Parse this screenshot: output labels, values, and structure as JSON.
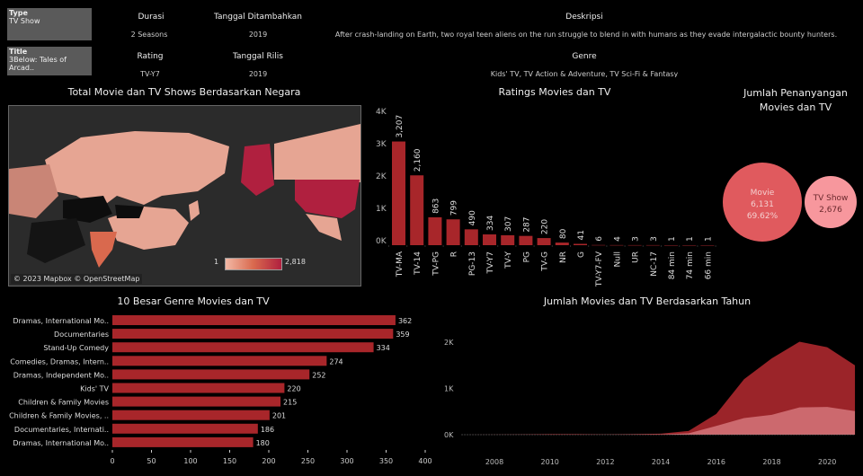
{
  "filters": {
    "type_label": "Type",
    "type_value": "TV Show",
    "title_label": "Title",
    "title_value": "3Below: Tales of Arcad.."
  },
  "details": {
    "durasi_label": "Durasi",
    "durasi_value": "2 Seasons",
    "added_label": "Tanggal Ditambahkan",
    "added_value": "2019",
    "desc_label": "Deskripsi",
    "desc_value": "After crash-landing on Earth, two royal teen aliens on the run struggle to blend in with humans as they evade intergalactic bounty hunters.",
    "rating_label": "Rating",
    "rating_value": "TV-Y7",
    "release_label": "Tanggal Rilis",
    "release_value": "2019",
    "genre_label": "Genre",
    "genre_value": "Kids' TV, TV Action & Adventure, TV Sci-Fi & Fantasy"
  },
  "map": {
    "title": "Total Movie dan TV Shows Berdasarkan Negara",
    "legend_min": "1",
    "legend_max": "2,818",
    "attribution": "© 2023 Mapbox © OpenStreetMap",
    "colors": {
      "low": "#f2b8a5",
      "high": "#b0203f",
      "mid": "#d9694e",
      "none": "#333333"
    }
  },
  "chart_data": [
    {
      "type": "bar",
      "title": "Ratings Movies dan TV",
      "categories": [
        "TV-MA",
        "TV-14",
        "TV-PG",
        "R",
        "PG-13",
        "TV-Y7",
        "TV-Y",
        "PG",
        "TV-G",
        "NR",
        "G",
        "TV-Y7-FV",
        "Null",
        "UR",
        "NC-17",
        "84 min",
        "74 min",
        "66 min"
      ],
      "values": [
        3207,
        2160,
        863,
        799,
        490,
        334,
        307,
        287,
        220,
        80,
        41,
        6,
        4,
        3,
        3,
        1,
        1,
        1
      ],
      "labels": [
        "3,207",
        "2,160",
        "863",
        "799",
        "490",
        "334",
        "307",
        "287",
        "220",
        "80",
        "41",
        "6",
        "4",
        "3",
        "3",
        "1",
        "1",
        "1"
      ],
      "yticks": [
        "0K",
        "1K",
        "2K",
        "3K",
        "4K"
      ],
      "ylim": [
        0,
        4000
      ],
      "color": "#a8262a"
    },
    {
      "type": "bubble",
      "title": "Jumlah Penanyangan Movies dan TV",
      "categories": [
        "Movie",
        "TV Show"
      ],
      "values": [
        6131,
        2676
      ],
      "labels": [
        "6,131",
        "2,676"
      ],
      "percent": "69.62%",
      "colors": [
        "#e05a5e",
        "#f7979d"
      ]
    },
    {
      "type": "bar",
      "orientation": "horizontal",
      "title": "10 Besar Genre Movies dan TV",
      "categories": [
        "Dramas, International Mo..",
        "Documentaries",
        "Stand-Up Comedy",
        "Comedies, Dramas, Intern..",
        "Dramas, Independent Mo..",
        "Kids' TV",
        "Children & Family Movies",
        "Children & Family Movies, ..",
        "Documentaries, Internati..",
        "Dramas, International Mo.."
      ],
      "values": [
        362,
        359,
        334,
        274,
        252,
        220,
        215,
        201,
        186,
        180
      ],
      "xticks": [
        "0",
        "50",
        "100",
        "150",
        "200",
        "250",
        "300",
        "350",
        "400"
      ],
      "xlim": [
        0,
        400
      ],
      "color": "#a8262a"
    },
    {
      "type": "area",
      "stacked": true,
      "title": "Jumlah Movies dan TV Berdasarkan Tahun",
      "x": [
        2007,
        2008,
        2009,
        2010,
        2011,
        2012,
        2013,
        2014,
        2015,
        2016,
        2017,
        2018,
        2019,
        2020,
        2021
      ],
      "series": [
        {
          "values": [
            0,
            1,
            2,
            1,
            0,
            3,
            5,
            6,
            30,
            190,
            360,
            430,
            590,
            600,
            510
          ],
          "color": "#f4a3a8"
        },
        {
          "values": [
            0,
            1,
            2,
            11,
            13,
            3,
            6,
            17,
            50,
            260,
            840,
            1220,
            1420,
            1290,
            990
          ],
          "color": "#a3262b"
        }
      ],
      "xticks": [
        "2008",
        "2010",
        "2012",
        "2014",
        "2016",
        "2018",
        "2020"
      ],
      "yticks": [
        "0K",
        "1K",
        "2K"
      ],
      "ylim": [
        0,
        2000
      ]
    }
  ]
}
